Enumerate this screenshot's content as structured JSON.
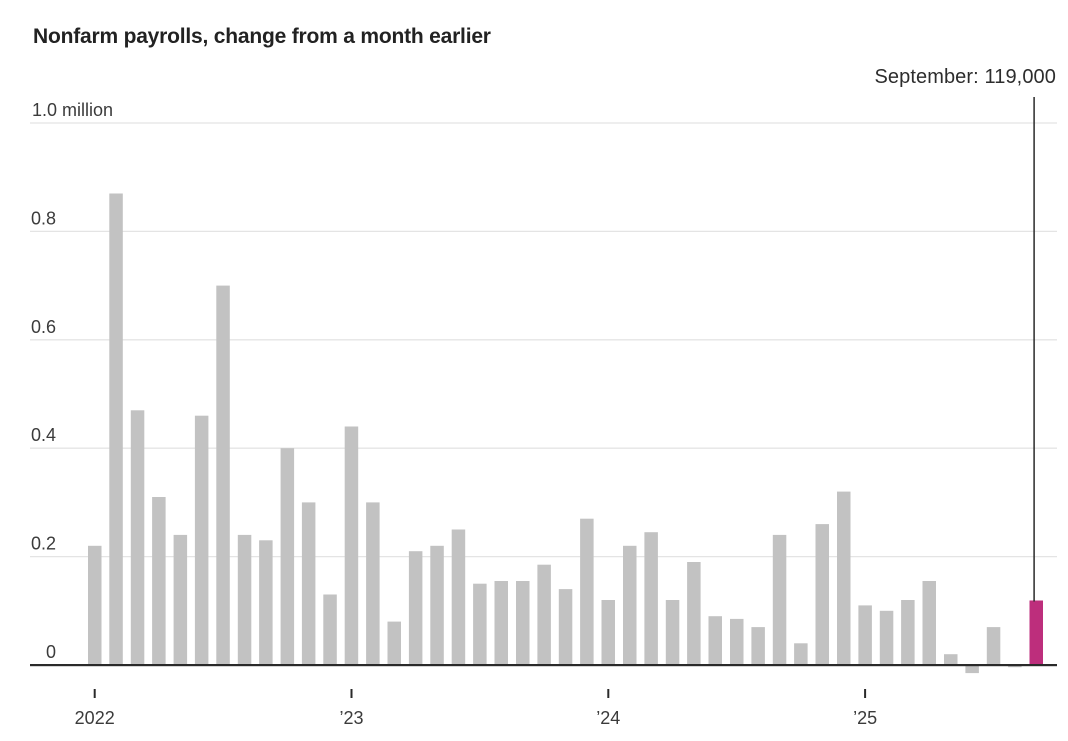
{
  "chart": {
    "title": "Nonfarm payrolls, change from a month earlier",
    "annotation": {
      "text": "September: 119,000",
      "month": "September 2025",
      "value_millions": 0.119
    },
    "colors": {
      "bar": "#c2c2c2",
      "highlight": "#bd2e7c",
      "gridline": "#e4e4e4",
      "axis": "#2a2a2a",
      "annotation_line": "#2a2a2a",
      "label_text": "#3b3b3b",
      "title_text": "#222222"
    }
  },
  "chart_data": {
    "type": "bar",
    "title": "Nonfarm payrolls, change from a month earlier",
    "xlabel": "",
    "ylabel": "million",
    "unit": "million",
    "grid": "horizontal",
    "legend": "none",
    "ylim": [
      -0.05,
      1.0
    ],
    "categories": [
      "2022-01",
      "2022-02",
      "2022-03",
      "2022-04",
      "2022-05",
      "2022-06",
      "2022-07",
      "2022-08",
      "2022-09",
      "2022-10",
      "2022-11",
      "2022-12",
      "2023-01",
      "2023-02",
      "2023-03",
      "2023-04",
      "2023-05",
      "2023-06",
      "2023-07",
      "2023-08",
      "2023-09",
      "2023-10",
      "2023-11",
      "2023-12",
      "2024-01",
      "2024-02",
      "2024-03",
      "2024-04",
      "2024-05",
      "2024-06",
      "2024-07",
      "2024-08",
      "2024-09",
      "2024-10",
      "2024-11",
      "2024-12",
      "2025-01",
      "2025-02",
      "2025-03",
      "2025-04",
      "2025-05",
      "2025-06",
      "2025-07",
      "2025-08",
      "2025-09"
    ],
    "values": [
      0.22,
      0.87,
      0.47,
      0.31,
      0.24,
      0.46,
      0.7,
      0.24,
      0.23,
      0.4,
      0.3,
      0.13,
      0.44,
      0.3,
      0.08,
      0.21,
      0.22,
      0.25,
      0.15,
      0.155,
      0.155,
      0.185,
      0.14,
      0.27,
      0.12,
      0.22,
      0.245,
      0.12,
      0.19,
      0.09,
      0.085,
      0.07,
      0.24,
      0.04,
      0.26,
      0.32,
      0.11,
      0.1,
      0.12,
      0.155,
      0.02,
      -0.015,
      0.07,
      -0.004,
      0.119
    ],
    "highlight_index": 44,
    "highlight_label": "September: 119,000",
    "y_ticks": [
      {
        "value": 0,
        "label": "0"
      },
      {
        "value": 0.2,
        "label": "0.2"
      },
      {
        "value": 0.4,
        "label": "0.4"
      },
      {
        "value": 0.6,
        "label": "0.6"
      },
      {
        "value": 0.8,
        "label": "0.8"
      },
      {
        "value": 1.0,
        "label": "1.0 million"
      }
    ],
    "x_ticks": [
      {
        "month_index": 0,
        "label": "2022"
      },
      {
        "month_index": 12,
        "label": "’23"
      },
      {
        "month_index": 24,
        "label": "’24"
      },
      {
        "month_index": 36,
        "label": "’25"
      }
    ]
  }
}
